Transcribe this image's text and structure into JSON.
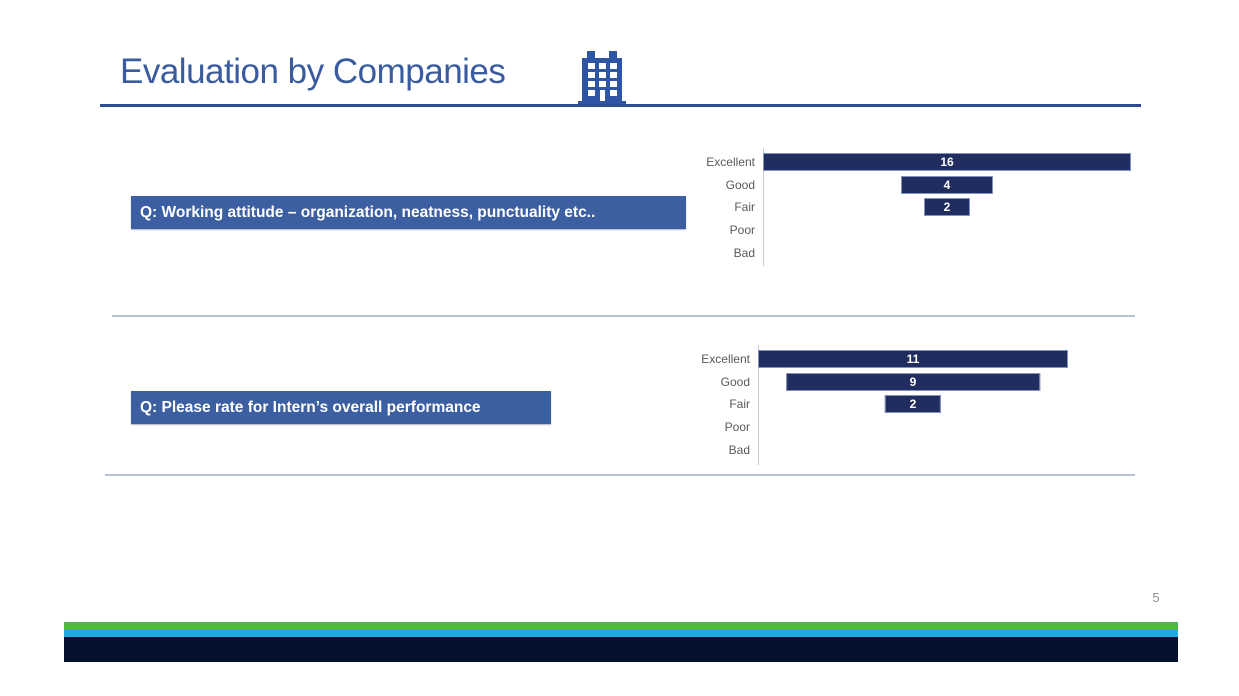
{
  "header": {
    "title": "Evaluation by Companies",
    "icon": "building-icon"
  },
  "sections": [
    {
      "question": "Q: Working attitude – organization, neatness, punctuality etc.."
    },
    {
      "question": "Q: Please rate for Intern’s overall performance"
    }
  ],
  "footer": {
    "page_number": "5"
  },
  "colors": {
    "title_blue": "#3a5c9e",
    "underline_blue": "#2d4b8e",
    "question_box_blue": "#3c5fa2",
    "bar_navy": "#212d5e",
    "bar_border": "#8193be",
    "category_label_gray": "#595959",
    "divider_gray": "#b5c1d0",
    "footer_green": "#4cb848",
    "footer_cyan": "#20a9de",
    "footer_navy": "#04102e",
    "page_number_gray": "#8f8f8f"
  },
  "chart_data": [
    {
      "type": "bar",
      "subtype": "funnel_centered_horizontal",
      "title": "Q: Working attitude – organization, neatness, punctuality etc..",
      "categories": [
        "Excellent",
        "Good",
        "Fair",
        "Poor",
        "Bad"
      ],
      "values": [
        16,
        4,
        2,
        0,
        0
      ],
      "data_labels": [
        "16",
        "4",
        "2",
        "",
        ""
      ],
      "xlim": [
        0,
        16
      ],
      "grid": false,
      "legend": "none",
      "bar_color": "#212d5e",
      "data_label_color": "#ffffff"
    },
    {
      "type": "bar",
      "subtype": "funnel_centered_horizontal",
      "title": "Q: Please rate for Intern’s overall performance",
      "categories": [
        "Excellent",
        "Good",
        "Fair",
        "Poor",
        "Bad"
      ],
      "values": [
        11,
        9,
        2,
        0,
        0
      ],
      "data_labels": [
        "11",
        "9",
        "2",
        "",
        ""
      ],
      "xlim": [
        0,
        11
      ],
      "grid": false,
      "legend": "none",
      "bar_color": "#212d5e",
      "data_label_color": "#ffffff"
    }
  ]
}
